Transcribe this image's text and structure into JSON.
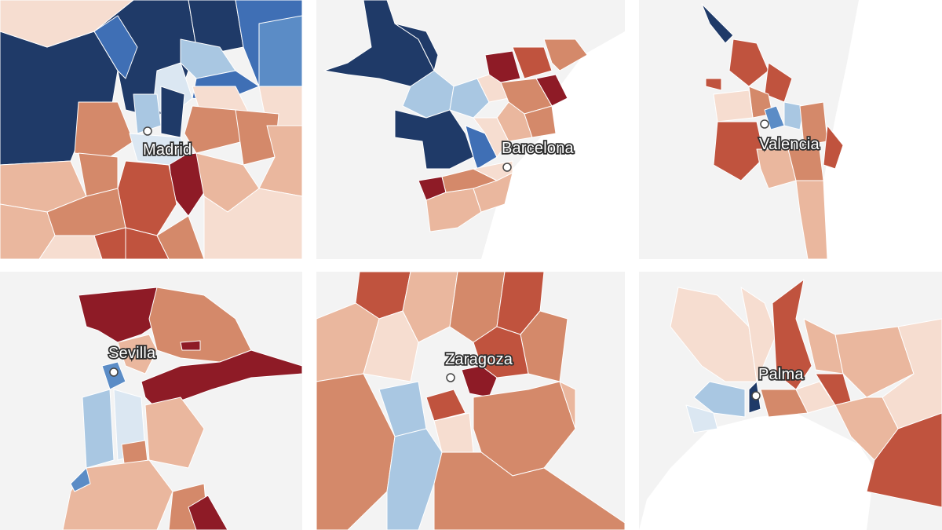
{
  "colors": {
    "background": "#f3f3f3",
    "sea": "#ffffff",
    "divider": "#ffffff",
    "dark_blue": "#1f3a68",
    "mid_blue": "#3f6fb5",
    "blue": "#5b8cc6",
    "light_blue": "#a9c7e2",
    "pale_blue": "#dbe7f2",
    "pale_red": "#f6ddd0",
    "light_red": "#eab79e",
    "mid_red": "#d4896a",
    "red": "#c0533e",
    "dark_red": "#8e1b26"
  },
  "cities": [
    {
      "id": "madrid",
      "label": "Madrid"
    },
    {
      "id": "barcelona",
      "label": "Barcelona"
    },
    {
      "id": "valencia",
      "label": "Valencia"
    },
    {
      "id": "sevilla",
      "label": "Sevilla"
    },
    {
      "id": "zaragoza",
      "label": "Zaragoza"
    },
    {
      "id": "palma",
      "label": "Palma"
    }
  ]
}
